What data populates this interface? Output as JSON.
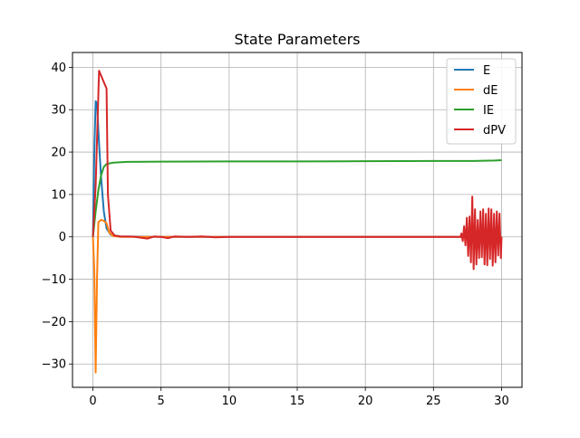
{
  "chart_data": {
    "type": "line",
    "title": "State Parameters",
    "xlabel": "",
    "ylabel": "",
    "xlim": [
      -1.5,
      31.5
    ],
    "ylim": [
      -35.5,
      43.5
    ],
    "xticks": [
      0,
      5,
      10,
      15,
      20,
      25,
      30
    ],
    "yticks": [
      -30,
      -20,
      -10,
      0,
      10,
      20,
      30,
      40
    ],
    "grid": true,
    "legend_position": "top-right",
    "series": [
      {
        "name": "E",
        "color": "#1f77b4",
        "points": [
          [
            0,
            0
          ],
          [
            0.1,
            20
          ],
          [
            0.2,
            32
          ],
          [
            0.3,
            31.5
          ],
          [
            0.45,
            22
          ],
          [
            0.6,
            14
          ],
          [
            0.8,
            6
          ],
          [
            1.0,
            2
          ],
          [
            1.3,
            0.5
          ],
          [
            2,
            0.1
          ],
          [
            5,
            0
          ],
          [
            10,
            0
          ],
          [
            20,
            0
          ],
          [
            27,
            0
          ],
          [
            30,
            0
          ]
        ]
      },
      {
        "name": "dE",
        "color": "#ff7f0e",
        "points": [
          [
            0,
            0
          ],
          [
            0.1,
            -8
          ],
          [
            0.2,
            -32
          ],
          [
            0.3,
            -10
          ],
          [
            0.4,
            3.5
          ],
          [
            0.6,
            4
          ],
          [
            0.8,
            3.8
          ],
          [
            1.0,
            3.2
          ],
          [
            1.2,
            1
          ],
          [
            1.5,
            0.2
          ],
          [
            2,
            0
          ],
          [
            5,
            0
          ],
          [
            10,
            0
          ],
          [
            20,
            0
          ],
          [
            30,
            0
          ]
        ]
      },
      {
        "name": "IE",
        "color": "#2ca02c",
        "points": [
          [
            0,
            0
          ],
          [
            0.2,
            6
          ],
          [
            0.4,
            11
          ],
          [
            0.6,
            14.5
          ],
          [
            0.8,
            16.5
          ],
          [
            1.0,
            17.2
          ],
          [
            1.5,
            17.5
          ],
          [
            2.5,
            17.7
          ],
          [
            5,
            17.75
          ],
          [
            10,
            17.8
          ],
          [
            15,
            17.8
          ],
          [
            20,
            17.85
          ],
          [
            25,
            17.9
          ],
          [
            28,
            17.9
          ],
          [
            29.5,
            18
          ],
          [
            30,
            18.1
          ]
        ]
      },
      {
        "name": "dPV",
        "color": "#d62728",
        "points": [
          [
            0,
            0
          ],
          [
            0.2,
            12
          ],
          [
            0.45,
            39.2
          ],
          [
            0.8,
            36.5
          ],
          [
            1.0,
            35
          ],
          [
            1.1,
            10
          ],
          [
            1.3,
            1.5
          ],
          [
            1.6,
            0.3
          ],
          [
            2,
            0.1
          ],
          [
            3,
            0.05
          ],
          [
            3.5,
            -0.2
          ],
          [
            4,
            -0.4
          ],
          [
            4.5,
            0.1
          ],
          [
            5,
            0
          ],
          [
            5.5,
            -0.3
          ],
          [
            6,
            0.1
          ],
          [
            7,
            0
          ],
          [
            8,
            0.1
          ],
          [
            9,
            -0.1
          ],
          [
            10,
            0
          ],
          [
            15,
            0
          ],
          [
            20,
            0
          ],
          [
            25,
            0
          ],
          [
            27,
            0
          ]
        ]
      }
    ]
  }
}
